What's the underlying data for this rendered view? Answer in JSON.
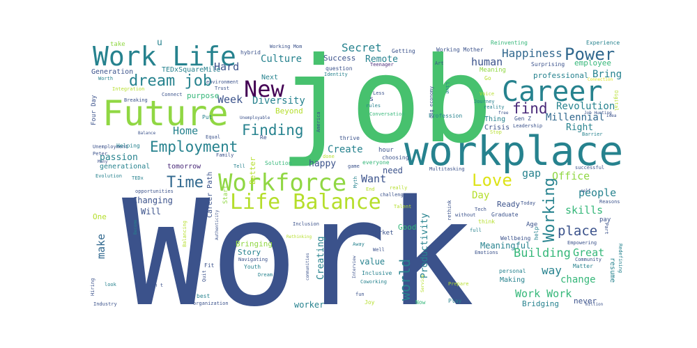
{
  "palette": {
    "dark_blue": "#3b528b",
    "indigo": "#482878",
    "purple": "#440154",
    "blue": "#31688e",
    "teal": "#26828e",
    "teal_green": "#1f9e89",
    "green": "#35b779",
    "bright_green": "#47c16e",
    "lime": "#90d743",
    "yellow_green": "#b5de2b",
    "yellow": "#dde318"
  },
  "words": [
    {
      "text": "Work",
      "color": "#3b528b"
    },
    {
      "text": "job",
      "color": "#47c16e"
    },
    {
      "text": "workplace",
      "color": "#26828e"
    },
    {
      "text": "Future",
      "color": "#90d743"
    },
    {
      "text": "Work Life",
      "color": "#26828e"
    },
    {
      "text": "Career",
      "color": "#26828e"
    },
    {
      "text": "Workforce",
      "color": "#90d743"
    },
    {
      "text": "Life Balance",
      "color": "#b5de2b"
    },
    {
      "text": "New",
      "color": "#440154"
    },
    {
      "text": "Power",
      "color": "#31688e"
    },
    {
      "text": "Employment",
      "color": "#26828e"
    },
    {
      "text": "Time",
      "color": "#31688e"
    },
    {
      "text": "dream job",
      "color": "#26828e"
    },
    {
      "text": "Finding",
      "color": "#26828e"
    },
    {
      "text": "find",
      "color": "#482878"
    },
    {
      "text": "Love",
      "color": "#dde318"
    },
    {
      "text": "Working",
      "color": "#26828e"
    },
    {
      "text": "world",
      "color": "#26828e"
    },
    {
      "text": "Happiness",
      "color": "#31688e"
    },
    {
      "text": "Secret",
      "color": "#26828e"
    },
    {
      "text": "Culture",
      "color": "#26828e"
    },
    {
      "text": "Hard",
      "color": "#3b528b"
    },
    {
      "text": "Week",
      "color": "#3b528b"
    },
    {
      "text": "Diversity",
      "color": "#26828e"
    },
    {
      "text": "Home",
      "color": "#26828e"
    },
    {
      "text": "human",
      "color": "#3b528b"
    },
    {
      "text": "Revolution",
      "color": "#26828e"
    },
    {
      "text": "Millennial",
      "color": "#31688e"
    },
    {
      "text": "Right",
      "color": "#26828e"
    },
    {
      "text": "Office",
      "color": "#90d743"
    },
    {
      "text": "people",
      "color": "#26828e"
    },
    {
      "text": "skills",
      "color": "#35b779"
    },
    {
      "text": "place",
      "color": "#3b528b"
    },
    {
      "text": "Building",
      "color": "#35b779"
    },
    {
      "text": "way",
      "color": "#26828e"
    },
    {
      "text": "Great",
      "color": "#35b779"
    },
    {
      "text": "change",
      "color": "#35b779"
    },
    {
      "text": "Work Work",
      "color": "#35b779"
    },
    {
      "text": "make",
      "color": "#31688e"
    },
    {
      "text": "Create",
      "color": "#26828e"
    },
    {
      "text": "Want",
      "color": "#3b528b"
    },
    {
      "text": "Day",
      "color": "#b5de2b"
    },
    {
      "text": "gap",
      "color": "#26828e"
    },
    {
      "text": "Remote",
      "color": "#26828e"
    },
    {
      "text": "Bring",
      "color": "#26828e"
    },
    {
      "text": "employee",
      "color": "#35b779"
    },
    {
      "text": "Creating",
      "color": "#26828e"
    },
    {
      "text": "Productivity",
      "color": "#26828e"
    },
    {
      "text": "Meaningful",
      "color": "#26828e"
    },
    {
      "text": "passion",
      "color": "#26828e"
    },
    {
      "text": "Changing",
      "color": "#3b528b"
    },
    {
      "text": "Will",
      "color": "#3b528b"
    },
    {
      "text": "value",
      "color": "#26828e"
    },
    {
      "text": "need",
      "color": "#3b528b"
    },
    {
      "text": "happy",
      "color": "#3b528b"
    },
    {
      "text": "Bringing",
      "color": "#90d743"
    },
    {
      "text": "Story",
      "color": "#26828e"
    },
    {
      "text": "worker",
      "color": "#26828e"
    },
    {
      "text": "Bridging",
      "color": "#26828e"
    },
    {
      "text": "professional",
      "color": "#26828e"
    },
    {
      "text": "Generation",
      "color": "#3b528b"
    },
    {
      "text": "TEDxSquareMile",
      "color": "#26828e"
    },
    {
      "text": "purpose",
      "color": "#35b779"
    },
    {
      "text": "Beyond",
      "color": "#b5de2b"
    },
    {
      "text": "Success",
      "color": "#3b528b"
    },
    {
      "text": "One",
      "color": "#b5de2b"
    },
    {
      "text": "Good",
      "color": "#35b779"
    },
    {
      "text": "Ready",
      "color": "#3b528b"
    },
    {
      "text": "Thing",
      "color": "#26828e"
    },
    {
      "text": "Crisis",
      "color": "#3b528b"
    },
    {
      "text": "Making",
      "color": "#26828e"
    },
    {
      "text": "never",
      "color": "#3b528b"
    },
    {
      "text": "resume",
      "color": "#26828e"
    },
    {
      "text": "generational",
      "color": "#26828e"
    },
    {
      "text": "Four Day",
      "color": "#3b528b"
    },
    {
      "text": "tomorrow",
      "color": "#482878"
    },
    {
      "text": "Next",
      "color": "#26828e"
    },
    {
      "text": "Better",
      "color": "#b5de2b"
    },
    {
      "text": "Career Path",
      "color": "#3b528b"
    },
    {
      "text": "Start",
      "color": "#90d743"
    },
    {
      "text": "u",
      "color": "#26828e"
    },
    {
      "text": "take",
      "color": "#90d743"
    },
    {
      "text": "hybrid",
      "color": "#3b528b"
    },
    {
      "text": "Working Mom",
      "color": "#3b528b"
    },
    {
      "text": "Getting",
      "color": "#3b528b"
    },
    {
      "text": "Working Mother",
      "color": "#3b528b"
    },
    {
      "text": "Reinventing",
      "color": "#35b779"
    },
    {
      "text": "Experience",
      "color": "#26828e"
    },
    {
      "text": "Surprising",
      "color": "#3b528b"
    },
    {
      "text": "Meaning",
      "color": "#90d743"
    },
    {
      "text": "question",
      "color": "#3b528b"
    },
    {
      "text": "Identity",
      "color": "#26828e"
    },
    {
      "text": "Teenager",
      "color": "#482878"
    },
    {
      "text": "Art",
      "color": "#3b528b"
    },
    {
      "text": "Go",
      "color": "#b5de2b"
    },
    {
      "text": "Connection",
      "color": "#dde318"
    },
    {
      "text": "Digital",
      "color": "#b5de2b"
    },
    {
      "text": "Worth",
      "color": "#26828e"
    },
    {
      "text": "Integration",
      "color": "#b5de2b"
    },
    {
      "text": "Connect",
      "color": "#3b528b"
    },
    {
      "text": "Breaking",
      "color": "#3b528b"
    },
    {
      "text": "Trust",
      "color": "#3b528b"
    },
    {
      "text": "environment",
      "color": "#3b528b"
    },
    {
      "text": "Put",
      "color": "#26828e"
    },
    {
      "text": "Unemployable",
      "color": "#3b528b"
    },
    {
      "text": "Unemployment",
      "color": "#3b528b"
    },
    {
      "text": "Balance",
      "color": "#3b528b"
    },
    {
      "text": "Peter",
      "color": "#3b528b"
    },
    {
      "text": "Many",
      "color": "#3b528b"
    },
    {
      "text": "Helping",
      "color": "#26828e"
    },
    {
      "text": "Equal",
      "color": "#3b528b"
    },
    {
      "text": "Family",
      "color": "#3b528b"
    },
    {
      "text": "Re",
      "color": "#3b528b"
    },
    {
      "text": "Tell",
      "color": "#26828e"
    },
    {
      "text": "Solution",
      "color": "#35b779"
    },
    {
      "text": "done",
      "color": "#b5de2b"
    },
    {
      "text": "everyone",
      "color": "#35b779"
    },
    {
      "text": "game",
      "color": "#3b528b"
    },
    {
      "text": "thrive",
      "color": "#3b528b"
    },
    {
      "text": "America",
      "color": "#3b528b"
    },
    {
      "text": "hour",
      "color": "#3b528b"
    },
    {
      "text": "choosing",
      "color": "#3b528b"
    },
    {
      "text": "Conversation",
      "color": "#35b779"
    },
    {
      "text": "Profession",
      "color": "#26828e"
    },
    {
      "text": "Multitasking",
      "color": "#3b528b"
    },
    {
      "text": "Less",
      "color": "#3b528b"
    },
    {
      "text": "rules",
      "color": "#26828e"
    },
    {
      "text": "gig economy",
      "color": "#3b528b"
    },
    {
      "text": "Live",
      "color": "#26828e"
    },
    {
      "text": "Journey",
      "color": "#26828e"
    },
    {
      "text": "reality",
      "color": "#26828e"
    },
    {
      "text": "free",
      "color": "#3b528b"
    },
    {
      "text": "Gen Z",
      "color": "#3b528b"
    },
    {
      "text": "Leadership",
      "color": "#3b528b"
    },
    {
      "text": "Stop",
      "color": "#b5de2b"
    },
    {
      "text": "Job Hunting",
      "color": "#3b528b"
    },
    {
      "text": "Idea",
      "color": "#3b528b"
    },
    {
      "text": "Barrier",
      "color": "#26828e"
    },
    {
      "text": "Voice",
      "color": "#b5de2b"
    },
    {
      "text": "successful",
      "color": "#3b528b"
    },
    {
      "text": "self",
      "color": "#3b528b"
    },
    {
      "text": "Reasons",
      "color": "#3b528b"
    },
    {
      "text": "Today",
      "color": "#3b528b"
    },
    {
      "text": "Age",
      "color": "#3b528b"
    },
    {
      "text": "help",
      "color": "#26828e"
    },
    {
      "text": "Graduate",
      "color": "#3b528b"
    },
    {
      "text": "think",
      "color": "#b5de2b"
    },
    {
      "text": "Tech",
      "color": "#3b528b"
    },
    {
      "text": "rethink",
      "color": "#3b528b"
    },
    {
      "text": "without",
      "color": "#3b528b"
    },
    {
      "text": "full",
      "color": "#26828e"
    },
    {
      "text": "Emotions",
      "color": "#3b528b"
    },
    {
      "text": "Wellbeing",
      "color": "#3b528b"
    },
    {
      "text": "Empowering",
      "color": "#3b528b"
    },
    {
      "text": "Community",
      "color": "#3b528b"
    },
    {
      "text": "Matter",
      "color": "#26828e"
    },
    {
      "text": "Part",
      "color": "#3b528b"
    },
    {
      "text": "Redefining",
      "color": "#26828e"
    },
    {
      "text": "million",
      "color": "#3b528b"
    },
    {
      "text": "pay",
      "color": "#3b528b"
    },
    {
      "text": "personal",
      "color": "#26828e"
    },
    {
      "text": "Prepare",
      "color": "#b5de2b"
    },
    {
      "text": "Play",
      "color": "#26828e"
    },
    {
      "text": "Now",
      "color": "#35b779"
    },
    {
      "text": "fun",
      "color": "#3b528b"
    },
    {
      "text": "Joy",
      "color": "#b5de2b"
    },
    {
      "text": "Service",
      "color": "#b5de2b"
    },
    {
      "text": "Coworking",
      "color": "#26828e"
    },
    {
      "text": "Inclusive",
      "color": "#26828e"
    },
    {
      "text": "Away",
      "color": "#26828e"
    },
    {
      "text": "Well",
      "color": "#3b528b"
    },
    {
      "text": "Interview",
      "color": "#3b528b"
    },
    {
      "text": "market",
      "color": "#3b528b"
    },
    {
      "text": "Talent",
      "color": "#b5de2b"
    },
    {
      "text": "challenge",
      "color": "#3b528b"
    },
    {
      "text": "really",
      "color": "#b5de2b"
    },
    {
      "text": "End",
      "color": "#b5de2b"
    },
    {
      "text": "Myth",
      "color": "#26828e"
    },
    {
      "text": "Dream",
      "color": "#26828e"
    },
    {
      "text": "Navigating",
      "color": "#3b528b"
    },
    {
      "text": "Youth",
      "color": "#26828e"
    },
    {
      "text": "communities",
      "color": "#3b528b"
    },
    {
      "text": "Inclusion",
      "color": "#3b528b"
    },
    {
      "text": "Rethinking",
      "color": "#b5de2b"
    },
    {
      "text": "best",
      "color": "#26828e"
    },
    {
      "text": "organization",
      "color": "#3b528b"
    },
    {
      "text": "don t",
      "color": "#3b528b"
    },
    {
      "text": "Fit",
      "color": "#3b528b"
    },
    {
      "text": "Quit",
      "color": "#3b528b"
    },
    {
      "text": "Authenticity",
      "color": "#3b528b"
    },
    {
      "text": "Balancing",
      "color": "#b5de2b"
    },
    {
      "text": "Become",
      "color": "#26828e"
    },
    {
      "text": "opportunities",
      "color": "#3b528b"
    },
    {
      "text": "TEDx",
      "color": "#26828e"
    },
    {
      "text": "Evolution",
      "color": "#26828e"
    },
    {
      "text": "Hiring",
      "color": "#3b528b"
    },
    {
      "text": "look",
      "color": "#26828e"
    },
    {
      "text": "Industry",
      "color": "#3b528b"
    },
    {
      "text": "s",
      "color": "#3b528b"
    }
  ]
}
